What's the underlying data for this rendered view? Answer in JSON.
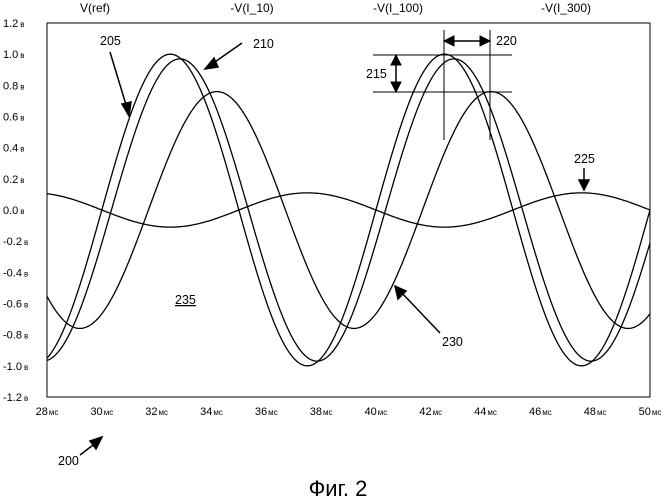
{
  "chart_data": {
    "type": "line",
    "xlim": [
      28,
      50
    ],
    "ylim": [
      -1.2,
      1.2
    ],
    "x_unit": "мс",
    "y_unit": "в",
    "x_ticks": [
      28,
      30,
      32,
      34,
      36,
      38,
      40,
      42,
      44,
      46,
      48,
      50
    ],
    "y_ticks": [
      1.2,
      1.0,
      0.8,
      0.6,
      0.4,
      0.2,
      0.0,
      -0.2,
      -0.4,
      -0.6,
      -0.8,
      -1.0,
      -1.2
    ],
    "x_tick_labels": [
      "28",
      "30",
      "32",
      "34",
      "36",
      "38",
      "40",
      "42",
      "44",
      "46",
      "48",
      "50"
    ],
    "y_tick_labels": [
      "1.2",
      "1.0",
      "0.8",
      "0.6",
      "0.4",
      "0.2",
      "0.0",
      "-0.2",
      "-0.4",
      "-0.6",
      "-0.8",
      "-1.0",
      "-1.2"
    ],
    "grid": false,
    "legend_position": "top",
    "series": [
      {
        "name": "V(ref)",
        "amplitude": 1.0,
        "period_ms": 10,
        "peak_ms": 32.5,
        "ref": "205"
      },
      {
        "name": "-V(I_10)",
        "amplitude": 0.97,
        "period_ms": 10,
        "peak_ms": 32.85,
        "ref": "210"
      },
      {
        "name": "-V(I_100)",
        "amplitude": 0.76,
        "period_ms": 10,
        "peak_ms": 34.2,
        "ref": "230"
      },
      {
        "name": "-V(I_300)",
        "amplitude": 0.11,
        "period_ms": 10,
        "peak_ms": 37.5,
        "ref": "225"
      }
    ]
  },
  "annotations": {
    "figure_ref": "200",
    "ref_205": "205",
    "ref_210": "210",
    "ref_215": "215",
    "ref_220": "220",
    "ref_225": "225",
    "ref_230": "230",
    "ref_235": "235"
  },
  "caption": "Фиг. 2",
  "colors": {
    "line": "#000000",
    "background": "#ffffff"
  }
}
